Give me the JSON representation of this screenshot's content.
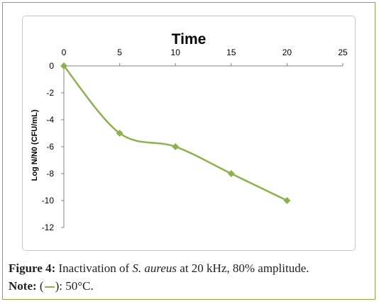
{
  "figure": {
    "caption_label": "Figure 4:",
    "caption_prefix": "Inactivation of",
    "caption_species": "S. aureus",
    "caption_suffix": "at 20 kHz, 80% amplitude.",
    "note_label": "Note:",
    "note_open": "(",
    "note_close": "):",
    "note_value": "50°C."
  },
  "colors": {
    "series": "#8db14d",
    "frame": "#8ca64a",
    "axis": "#808080"
  },
  "chart_data": {
    "type": "line",
    "title": "Time",
    "xlabel": "",
    "ylabel": "Log N/N0 (CFU/mL)",
    "xlim": [
      0,
      25
    ],
    "ylim": [
      -12,
      0
    ],
    "xticks": [
      0,
      5,
      10,
      15,
      20,
      25
    ],
    "yticks": [
      0,
      -2,
      -4,
      -6,
      -8,
      -10,
      -12
    ],
    "x_axis_position": "top",
    "grid": false,
    "smoothed": true,
    "marker": "diamond",
    "series": [
      {
        "x": [
          0,
          5,
          10,
          15,
          20
        ],
        "y": [
          0,
          -5,
          -6,
          -8,
          -10
        ]
      }
    ]
  }
}
